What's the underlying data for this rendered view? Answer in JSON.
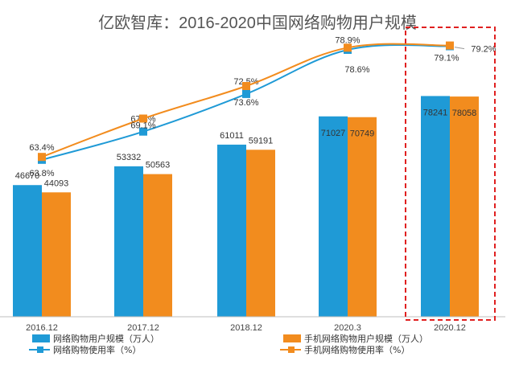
{
  "chart_data": {
    "type": "bar",
    "title": "亿欧智库：2016-2020中国网络购物用户规模",
    "categories": [
      "2016.12",
      "2017.12",
      "2018.12",
      "2020.3",
      "2020.12"
    ],
    "series": [
      {
        "name": "网络购物用户规模（万人）",
        "kind": "bar",
        "values": [
          46670,
          53332,
          61011,
          71027,
          78241
        ],
        "color": "#1f9ad6"
      },
      {
        "name": "手机网络购物用户规模（万人）",
        "kind": "bar",
        "values": [
          44093,
          50563,
          59191,
          70749,
          78058
        ],
        "color": "#f28c1e"
      },
      {
        "name": "网络购物使用率（%）",
        "kind": "line",
        "values": [
          63.4,
          67.3,
          72.5,
          78.6,
          79.1
        ],
        "labels": [
          "63.4%",
          "67.3%",
          "72.5%",
          "78.6%",
          "79.1%"
        ],
        "color": "#1f9ad6"
      },
      {
        "name": "手机网络购物使用率（%）",
        "kind": "line",
        "values": [
          63.8,
          69.1,
          73.6,
          78.9,
          79.2
        ],
        "labels": [
          "63.8%",
          "69.1%",
          "73.6%",
          "78.9%",
          "79.2%"
        ],
        "color": "#f28c1e"
      }
    ],
    "highlight": {
      "category": "2020.12",
      "style": "red-dashed-box"
    },
    "legend_position": "bottom",
    "grid": false
  }
}
